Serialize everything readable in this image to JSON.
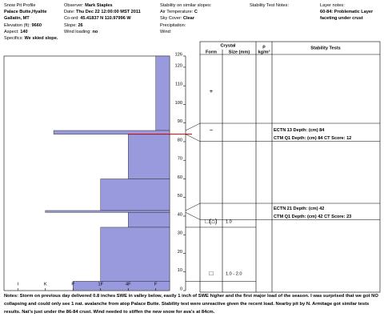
{
  "header": {
    "columns": [
      [
        {
          "label": "Snow Pit Profile"
        },
        {
          "value": "Palace Butte,Hyalite"
        },
        {
          "value": "Gallatin, MT"
        },
        {
          "label": "Elevation (ft):",
          "value": "9660"
        },
        {
          "label": "Aspect:",
          "value": "140"
        },
        {
          "label": "Specifics:",
          "value": "We skied slope."
        }
      ],
      [
        {
          "label": "Observer:",
          "value": "Mark Staples"
        },
        {
          "label": "Date:",
          "value": "Thu Dec 22 12:00:00 MST 2011"
        },
        {
          "label": "Co-ord:",
          "value": "45.41837 N 110.97996 W"
        },
        {
          "label": "Slope:",
          "value": "26"
        },
        {
          "label": "Wind loading:",
          "value": "no"
        }
      ],
      [
        {
          "label": "Stability on similar slopes:"
        },
        {
          "label": "Air Temperature:",
          "value": "C"
        },
        {
          "label": "Sky Cover:",
          "value": "Clear"
        },
        {
          "label": "Precipitation:"
        },
        {
          "label": "Wind:"
        }
      ],
      [
        {
          "label": "Stability Test Notes:"
        }
      ],
      [
        {
          "label": "Layer notes:"
        },
        {
          "value": "60-84: Problematic Layer faceting under crust"
        }
      ]
    ]
  },
  "chart_data": {
    "type": "snow-profile",
    "color": "#9999dd",
    "problem_color": "#cc0000",
    "problem_depth": 84,
    "layers": [
      {
        "top": 126,
        "bottom": 86,
        "hardness": 1
      },
      {
        "top": 86,
        "bottom": 84,
        "hardness": 4.7
      },
      {
        "top": 84,
        "bottom": 60,
        "hardness": 2
      },
      {
        "top": 60,
        "bottom": 43,
        "hardness": 3
      },
      {
        "top": 43,
        "bottom": 42,
        "hardness": 5
      },
      {
        "top": 42,
        "bottom": 34,
        "hardness": 2
      },
      {
        "top": 34,
        "bottom": 5,
        "hardness": 3
      },
      {
        "top": 5,
        "bottom": 0,
        "hardness": 4
      }
    ],
    "xlim": [
      6.5,
      0.5
    ],
    "xticks": [
      {
        "value": 6,
        "label": "I"
      },
      {
        "value": 5,
        "label": "K"
      },
      {
        "value": 4,
        "label": "P"
      },
      {
        "value": 3,
        "label": "1F"
      },
      {
        "value": 2,
        "label": "4F"
      },
      {
        "value": 1,
        "label": "F"
      }
    ],
    "ylim": [
      0,
      126
    ],
    "yticks": [
      0,
      10,
      20,
      30,
      40,
      50,
      60,
      70,
      80,
      90,
      100,
      110,
      120,
      126
    ]
  },
  "table": {
    "crystal_header": "Crystal",
    "form_header": "Form",
    "size_header": "Size (mm)",
    "rho_header": "ρ",
    "rho_unit": "kg/m³",
    "tests_header": "Stability Tests",
    "crystals": [
      {
        "depth": 107,
        "form": "+"
      },
      {
        "depth": 86,
        "form": "−"
      },
      {
        "depth": 37,
        "form": "□(⌂)",
        "size": "1.0"
      },
      {
        "depth": 9,
        "form": "□",
        "size": "1.0 - 2.0"
      }
    ],
    "tests": [
      {
        "text": "ECTN 13  Depth: (cm) 84",
        "depth": 84
      },
      {
        "text": "CTM Q1 Depth: (cm) 84 CT Score: 12",
        "depth": 84
      },
      {
        "text": "ECTN 21  Depth: (cm) 42",
        "depth": 42
      },
      {
        "text": "CTM Q1 Depth: (cm) 42 CT Score: 23",
        "depth": 42
      }
    ]
  },
  "notes": {
    "label": "Notes:",
    "text": "Storm on previous day delivered 0.8 inches SWE in valley below, easily 1 inch of SWE higher and the first major load of the season.  I was surprised that we got NO collapsing and could only see 1 nat. avalanche from atop Palace Butte.  Stability test were unreactive given the recent load.  Nearby pit by N. Armitage got similar tests results.  Nat's just under the 86-84 crust. Wind needed to stiffen the new snow for ava's at 84cm."
  }
}
